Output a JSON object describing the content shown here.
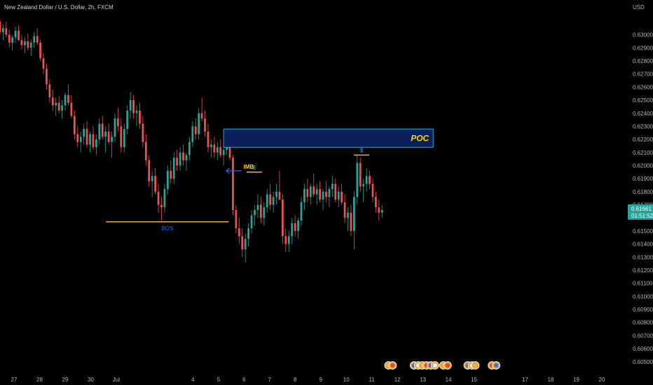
{
  "header": {
    "symbol_line": "New Zealand Dollar / U.S. Dollar, 2h, FXCM",
    "currency": "USD"
  },
  "price_badge": {
    "price": "0.61661",
    "countdown": "01:51:52"
  },
  "colors": {
    "up": "#26a69a",
    "down": "#ef5350",
    "badge": "#26a69a",
    "poc_fill": "#0a1f5c",
    "poc_border": "#2aa5c9",
    "poc_text": "#ffd600",
    "level_line": "#f5b433",
    "bos_text": "#2962ff",
    "imb_arrow": "#2962ff",
    "imb_text": "#ffd600",
    "dollar_text": "#42a5f5",
    "axis_text": "#b2b5be"
  },
  "annotations": {
    "poc_label": "POC",
    "bos_label": "BOS",
    "imb_label": "IMB",
    "dollar_label": "$"
  },
  "chart_data": {
    "type": "candlestick",
    "title": "New Zealand Dollar / U.S. Dollar, 2h, FXCM",
    "ylabel": "USD",
    "ylim": [
      0.6044,
      0.6318
    ],
    "y_ticks": [
      "0.63000",
      "0.62900",
      "0.62800",
      "0.62700",
      "0.62600",
      "0.62500",
      "0.62400",
      "0.62300",
      "0.62200",
      "0.62100",
      "0.62000",
      "0.61900",
      "0.61800",
      "0.61700",
      "0.61500",
      "0.61400",
      "0.61300",
      "0.61200",
      "0.61100",
      "0.61000",
      "0.60900",
      "0.60800",
      "0.60700",
      "0.60600",
      "0.60500"
    ],
    "x_ticks": [
      "27",
      "28",
      "29",
      "30",
      "Jul",
      "4",
      "5",
      "6",
      "7",
      "8",
      "9",
      "10",
      "11",
      "12",
      "13",
      "14",
      "15",
      "17",
      "18",
      "19",
      "20"
    ],
    "x_tick_days": [
      27,
      28,
      29,
      30,
      31,
      34,
      35,
      36,
      37,
      38,
      39,
      40,
      41,
      42,
      43,
      44,
      45,
      47,
      48,
      49,
      50
    ],
    "candles_end_day": 41.4,
    "last_price": 0.61661,
    "poc_zone": {
      "day_from": 35.2,
      "day_to": 43.4,
      "price_low": 0.6214,
      "price_high": 0.6228
    },
    "bos_level": {
      "day_from": 30.6,
      "day_to": 35.4,
      "price": 0.6157
    },
    "dollar_levels": [
      {
        "day_from": 36.1,
        "day_to": 36.7,
        "price": 0.6195
      },
      {
        "day_from": 40.3,
        "day_to": 40.9,
        "price": 0.6208
      }
    ],
    "imb_arrow": {
      "day_from": 35.9,
      "day_to": 35.3,
      "price": 0.6196
    },
    "candles": [
      [
        0.631,
        0.6312,
        0.63,
        0.6302
      ],
      [
        0.6302,
        0.6308,
        0.6296,
        0.6305
      ],
      [
        0.6305,
        0.631,
        0.6298,
        0.63
      ],
      [
        0.63,
        0.6304,
        0.629,
        0.6294
      ],
      [
        0.6294,
        0.63,
        0.6288,
        0.6298
      ],
      [
        0.6298,
        0.6306,
        0.6294,
        0.6303
      ],
      [
        0.6303,
        0.6307,
        0.6295,
        0.6296
      ],
      [
        0.6296,
        0.63,
        0.6289,
        0.6292
      ],
      [
        0.6292,
        0.6298,
        0.6286,
        0.6295
      ],
      [
        0.6295,
        0.6301,
        0.6288,
        0.629
      ],
      [
        0.629,
        0.6296,
        0.6284,
        0.6294
      ],
      [
        0.6294,
        0.6302,
        0.629,
        0.6299
      ],
      [
        0.6299,
        0.6305,
        0.6292,
        0.6294
      ],
      [
        0.6294,
        0.6296,
        0.628,
        0.6282
      ],
      [
        0.6282,
        0.6286,
        0.627,
        0.6274
      ],
      [
        0.6274,
        0.6278,
        0.6258,
        0.6262
      ],
      [
        0.6262,
        0.6266,
        0.6248,
        0.6252
      ],
      [
        0.6252,
        0.6258,
        0.6242,
        0.6246
      ],
      [
        0.6246,
        0.6252,
        0.6238,
        0.6248
      ],
      [
        0.6248,
        0.6253,
        0.624,
        0.6242
      ],
      [
        0.6242,
        0.625,
        0.6236,
        0.6246
      ],
      [
        0.6246,
        0.6256,
        0.6242,
        0.6254
      ],
      [
        0.6254,
        0.6262,
        0.6246,
        0.6248
      ],
      [
        0.6248,
        0.6254,
        0.6236,
        0.6238
      ],
      [
        0.6238,
        0.6242,
        0.622,
        0.6224
      ],
      [
        0.6224,
        0.623,
        0.6214,
        0.6218
      ],
      [
        0.6218,
        0.6226,
        0.621,
        0.6222
      ],
      [
        0.6222,
        0.6232,
        0.6216,
        0.6228
      ],
      [
        0.6228,
        0.6234,
        0.6214,
        0.6216
      ],
      [
        0.6216,
        0.6226,
        0.621,
        0.6224
      ],
      [
        0.6224,
        0.623,
        0.6212,
        0.6214
      ],
      [
        0.6214,
        0.6224,
        0.6208,
        0.622
      ],
      [
        0.622,
        0.6236,
        0.6216,
        0.6232
      ],
      [
        0.6232,
        0.6238,
        0.622,
        0.6222
      ],
      [
        0.6222,
        0.623,
        0.621,
        0.6226
      ],
      [
        0.6226,
        0.6232,
        0.6216,
        0.6218
      ],
      [
        0.6218,
        0.6226,
        0.6206,
        0.6222
      ],
      [
        0.6222,
        0.624,
        0.6218,
        0.6236
      ],
      [
        0.6236,
        0.6244,
        0.6226,
        0.623
      ],
      [
        0.623,
        0.6236,
        0.621,
        0.6214
      ],
      [
        0.6214,
        0.6232,
        0.621,
        0.6228
      ],
      [
        0.6228,
        0.6246,
        0.6224,
        0.6242
      ],
      [
        0.6242,
        0.6256,
        0.6236,
        0.625
      ],
      [
        0.625,
        0.6254,
        0.6236,
        0.624
      ],
      [
        0.624,
        0.6246,
        0.623,
        0.6242
      ],
      [
        0.6242,
        0.6248,
        0.6228,
        0.6232
      ],
      [
        0.6232,
        0.6238,
        0.6214,
        0.6218
      ],
      [
        0.6218,
        0.6224,
        0.62,
        0.6204
      ],
      [
        0.6204,
        0.6208,
        0.6184,
        0.6188
      ],
      [
        0.6188,
        0.6196,
        0.6176,
        0.6192
      ],
      [
        0.6192,
        0.6198,
        0.6178,
        0.618
      ],
      [
        0.618,
        0.6186,
        0.6164,
        0.617
      ],
      [
        0.617,
        0.6176,
        0.6158,
        0.6168
      ],
      [
        0.6168,
        0.6186,
        0.6164,
        0.6182
      ],
      [
        0.6182,
        0.62,
        0.6178,
        0.6196
      ],
      [
        0.6196,
        0.6204,
        0.6186,
        0.619
      ],
      [
        0.619,
        0.621,
        0.6186,
        0.6206
      ],
      [
        0.6206,
        0.6212,
        0.6196,
        0.62
      ],
      [
        0.62,
        0.6214,
        0.6196,
        0.621
      ],
      [
        0.621,
        0.6216,
        0.62,
        0.6204
      ],
      [
        0.6204,
        0.621,
        0.6196,
        0.6208
      ],
      [
        0.6208,
        0.6222,
        0.6204,
        0.6218
      ],
      [
        0.6218,
        0.6234,
        0.6214,
        0.623
      ],
      [
        0.623,
        0.6236,
        0.622,
        0.6224
      ],
      [
        0.6224,
        0.6244,
        0.622,
        0.624
      ],
      [
        0.624,
        0.6252,
        0.6234,
        0.6236
      ],
      [
        0.6236,
        0.6242,
        0.6222,
        0.6226
      ],
      [
        0.6226,
        0.6232,
        0.621,
        0.6214
      ],
      [
        0.6214,
        0.622,
        0.6206,
        0.6216
      ],
      [
        0.6216,
        0.6222,
        0.6206,
        0.621
      ],
      [
        0.621,
        0.6218,
        0.6204,
        0.6214
      ],
      [
        0.6214,
        0.622,
        0.6206,
        0.6208
      ],
      [
        0.6208,
        0.6216,
        0.62,
        0.6212
      ],
      [
        0.6212,
        0.6222,
        0.6208,
        0.6218
      ],
      [
        0.6218,
        0.6222,
        0.6204,
        0.6206
      ],
      [
        0.6206,
        0.6208,
        0.6162,
        0.6166
      ],
      [
        0.6166,
        0.617,
        0.6148,
        0.6152
      ],
      [
        0.6152,
        0.616,
        0.614,
        0.6146
      ],
      [
        0.6146,
        0.6152,
        0.613,
        0.6136
      ],
      [
        0.6136,
        0.6148,
        0.6126,
        0.6144
      ],
      [
        0.6144,
        0.6156,
        0.6138,
        0.6152
      ],
      [
        0.6152,
        0.6166,
        0.6148,
        0.6162
      ],
      [
        0.6162,
        0.617,
        0.6154,
        0.6166
      ],
      [
        0.6166,
        0.6178,
        0.616,
        0.617
      ],
      [
        0.617,
        0.6176,
        0.6156,
        0.616
      ],
      [
        0.616,
        0.6172,
        0.6154,
        0.6168
      ],
      [
        0.6168,
        0.6182,
        0.6164,
        0.6178
      ],
      [
        0.6178,
        0.6186,
        0.6166,
        0.617
      ],
      [
        0.617,
        0.618,
        0.6164,
        0.6176
      ],
      [
        0.6176,
        0.6186,
        0.617,
        0.618
      ],
      [
        0.618,
        0.6196,
        0.6174,
        0.6174
      ],
      [
        0.6174,
        0.6178,
        0.614,
        0.6146
      ],
      [
        0.6146,
        0.6152,
        0.6134,
        0.614
      ],
      [
        0.614,
        0.615,
        0.6134,
        0.6146
      ],
      [
        0.6146,
        0.616,
        0.614,
        0.6156
      ],
      [
        0.6156,
        0.6162,
        0.6146,
        0.615
      ],
      [
        0.615,
        0.616,
        0.6144,
        0.6158
      ],
      [
        0.6158,
        0.6176,
        0.6154,
        0.6172
      ],
      [
        0.6172,
        0.6186,
        0.6166,
        0.6182
      ],
      [
        0.6182,
        0.619,
        0.6172,
        0.6176
      ],
      [
        0.6176,
        0.6186,
        0.617,
        0.6184
      ],
      [
        0.6184,
        0.6194,
        0.6176,
        0.6178
      ],
      [
        0.6178,
        0.6186,
        0.617,
        0.6182
      ],
      [
        0.6182,
        0.6188,
        0.6172,
        0.6174
      ],
      [
        0.6174,
        0.6182,
        0.6166,
        0.618
      ],
      [
        0.618,
        0.6188,
        0.6172,
        0.6176
      ],
      [
        0.6176,
        0.6184,
        0.6168,
        0.6182
      ],
      [
        0.6182,
        0.6192,
        0.6176,
        0.6186
      ],
      [
        0.6186,
        0.619,
        0.6172,
        0.6174
      ],
      [
        0.6174,
        0.6184,
        0.6168,
        0.618
      ],
      [
        0.618,
        0.6186,
        0.617,
        0.6172
      ],
      [
        0.6172,
        0.6178,
        0.6156,
        0.616
      ],
      [
        0.616,
        0.6168,
        0.615,
        0.6164
      ],
      [
        0.6164,
        0.617,
        0.6146,
        0.615
      ],
      [
        0.615,
        0.618,
        0.6136,
        0.6176
      ],
      [
        0.6176,
        0.6208,
        0.617,
        0.6202
      ],
      [
        0.6202,
        0.6206,
        0.618,
        0.6184
      ],
      [
        0.6184,
        0.619,
        0.6172,
        0.6186
      ],
      [
        0.6186,
        0.6198,
        0.618,
        0.6192
      ],
      [
        0.6192,
        0.6196,
        0.6182,
        0.6186
      ],
      [
        0.6186,
        0.619,
        0.6172,
        0.6176
      ],
      [
        0.6176,
        0.618,
        0.6164,
        0.6168
      ],
      [
        0.6168,
        0.6174,
        0.6158,
        0.6164
      ],
      [
        0.6164,
        0.617,
        0.616,
        0.6166
      ]
    ]
  }
}
